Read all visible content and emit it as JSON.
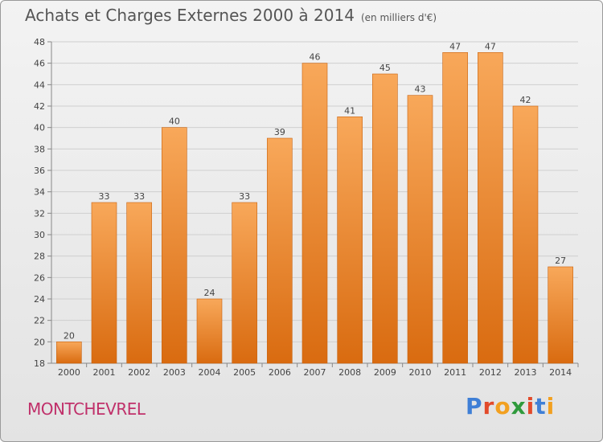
{
  "title": "Achats et Charges Externes 2000 à 2014",
  "unit": "(en milliers d'€)",
  "commune": "MONTCHEVREL",
  "logo": {
    "text": "Proxiti",
    "colors": [
      "#3f7fd6",
      "#e24a2a",
      "#f2a020",
      "#2f9a3c",
      "#e24a2a",
      "#3f7fd6",
      "#f2a020"
    ]
  },
  "colors": {
    "bar_top": "#f8a85a",
    "bar_bottom": "#d96b10",
    "title": "#555555",
    "commune": "#c0306a"
  },
  "chart_data": {
    "type": "bar",
    "title": "Achats et Charges Externes 2000 à 2014",
    "categories": [
      "2000",
      "2001",
      "2002",
      "2003",
      "2004",
      "2005",
      "2006",
      "2007",
      "2008",
      "2009",
      "2010",
      "2011",
      "2012",
      "2013",
      "2014"
    ],
    "values": [
      20,
      33,
      33,
      40,
      24,
      33,
      39,
      46,
      41,
      45,
      43,
      47,
      47,
      42,
      27
    ],
    "ylim": [
      18,
      48
    ],
    "yticks": [
      18,
      20,
      22,
      24,
      26,
      28,
      30,
      32,
      34,
      36,
      38,
      40,
      42,
      44,
      46,
      48
    ],
    "grid": true
  }
}
